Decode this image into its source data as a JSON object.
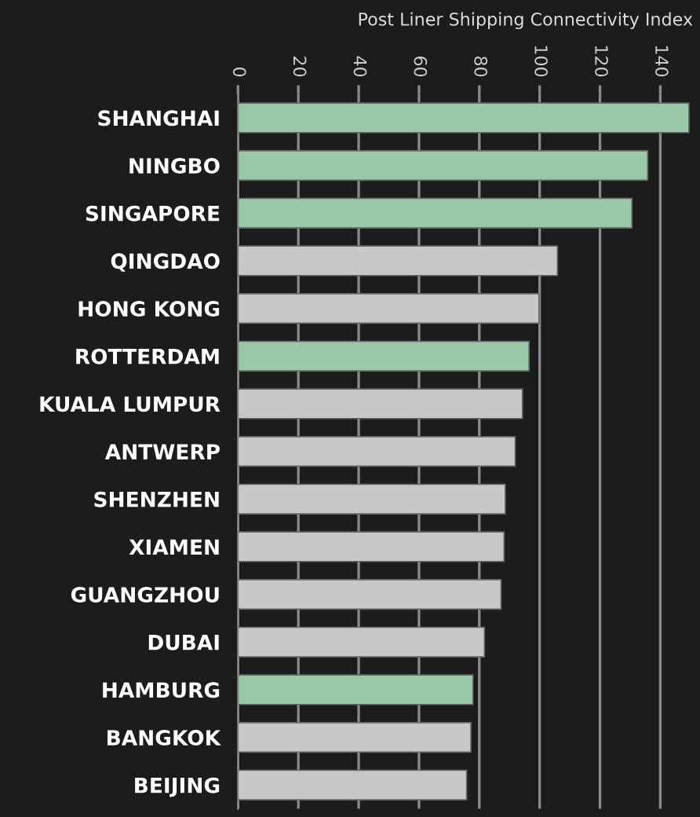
{
  "chart_data": {
    "type": "bar",
    "orientation": "horizontal",
    "title": "Post Liner Shipping Connectivity Index",
    "categories": [
      "SHANGHAI",
      "NINGBO",
      "SINGAPORE",
      "QINGDAO",
      "HONG KONG",
      "ROTTERDAM",
      "KUALA LUMPUR",
      "ANTWERP",
      "SHENZHEN",
      "XIAMEN",
      "GUANGZHOU",
      "DUBAI",
      "HAMBURG",
      "BANGKOK",
      "BEIJING"
    ],
    "values": [
      149.5,
      135.8,
      130.6,
      105.9,
      99.8,
      96.5,
      94.3,
      91.9,
      88.6,
      88.2,
      87.2,
      81.7,
      77.9,
      77.2,
      75.8
    ],
    "colors": [
      "#98c8a8",
      "#98c8a8",
      "#98c8a8",
      "#c8c8c8",
      "#c8c8c8",
      "#98c8a8",
      "#c8c8c8",
      "#c8c8c8",
      "#c8c8c8",
      "#c8c8c8",
      "#c8c8c8",
      "#c8c8c8",
      "#98c8a8",
      "#c8c8c8",
      "#c8c8c8"
    ],
    "xlim": [
      0,
      152
    ],
    "xticks": [
      0,
      20,
      40,
      60,
      80,
      100,
      120,
      140
    ],
    "grid": "x"
  }
}
